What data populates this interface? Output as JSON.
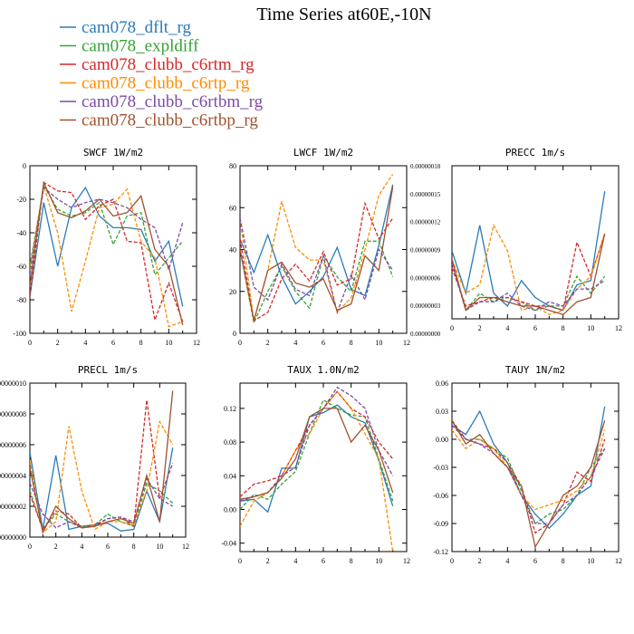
{
  "figure": {
    "title": "Time Series at60E,-10N",
    "legend": [
      {
        "label": "cam078_dflt_rg",
        "color": "#2a7ab8",
        "dashed": false
      },
      {
        "label": "cam078_expldiff",
        "color": "#35a335",
        "dashed": true
      },
      {
        "label": "cam078_clubb_c6rtm_rg",
        "color": "#d62728",
        "dashed": true
      },
      {
        "label": "cam078_clubb_c6rtp_rg",
        "color": "#ff8c00",
        "dashed": true
      },
      {
        "label": "cam078_clubb_c6rtbm_rg",
        "color": "#7b4ba6",
        "dashed": true
      },
      {
        "label": "cam078_clubb_c6rtbp_rg",
        "color": "#a0522d",
        "dashed": false
      }
    ]
  },
  "chart_data": [
    {
      "type": "line",
      "title": "SWCF   1W/m2",
      "x": [
        0,
        1,
        2,
        3,
        4,
        5,
        6,
        7,
        8,
        9,
        10,
        11
      ],
      "xlim": [
        0,
        12
      ],
      "ylim": [
        -100,
        0
      ],
      "xticks": [
        0,
        2,
        4,
        6,
        8,
        10,
        12
      ],
      "yticks": [
        0,
        -20,
        -40,
        -60,
        -80,
        -100
      ],
      "yticklabels": [
        "0",
        "-20",
        "-40",
        "-60",
        "-80",
        "-100"
      ],
      "series": [
        {
          "values": [
            -78,
            -22,
            -60,
            -25,
            -13,
            -30,
            -37,
            -37,
            -38,
            -57,
            -45,
            -84
          ]
        },
        {
          "values": [
            -60,
            -12,
            -26,
            -30,
            -28,
            -22,
            -47,
            -30,
            -28,
            -65,
            -55,
            -45
          ]
        },
        {
          "values": [
            -78,
            -10,
            -15,
            -16,
            -32,
            -24,
            -20,
            -45,
            -46,
            -92,
            -70,
            -93
          ]
        },
        {
          "values": [
            -62,
            -12,
            -40,
            -87,
            -57,
            -25,
            -23,
            -14,
            -45,
            -55,
            -96,
            -93
          ]
        },
        {
          "values": [
            -65,
            -13,
            -20,
            -25,
            -22,
            -20,
            -22,
            -25,
            -32,
            -37,
            -62,
            -34
          ]
        },
        {
          "values": [
            -72,
            -10,
            -28,
            -31,
            -27,
            -20,
            -30,
            -28,
            -18,
            -50,
            -60,
            -95
          ]
        }
      ]
    },
    {
      "type": "line",
      "title": "LWCF   1W/m2",
      "x": [
        0,
        1,
        2,
        3,
        4,
        5,
        6,
        7,
        8,
        9,
        10,
        11
      ],
      "xlim": [
        0,
        12
      ],
      "ylim": [
        0,
        80
      ],
      "xticks": [
        0,
        2,
        4,
        6,
        8,
        10,
        12
      ],
      "yticks": [
        0,
        20,
        40,
        60,
        80
      ],
      "yticklabels": [
        "0",
        "20",
        "40",
        "60",
        "80"
      ],
      "right_axis": {
        "ticks": [
          0.0,
          3e-08,
          6e-08,
          9e-08,
          1.2e-07,
          1.5e-07,
          1.8e-07
        ],
        "ticklabels": [
          "0.00000000",
          "0.00000003",
          "0.00000006",
          "0.00000009",
          "0.00000012",
          "0.00000015",
          "0.00000018"
        ],
        "ylim": [
          0,
          1.8e-07
        ]
      },
      "series": [
        {
          "values": [
            45,
            29,
            47,
            27,
            14,
            20,
            27,
            41,
            21,
            18,
            42,
            71
          ]
        },
        {
          "values": [
            40,
            5,
            20,
            32,
            20,
            12,
            37,
            27,
            20,
            44,
            44,
            27
          ]
        },
        {
          "values": [
            45,
            6,
            10,
            26,
            33,
            25,
            39,
            23,
            26,
            62,
            45,
            55
          ]
        },
        {
          "values": [
            55,
            6,
            30,
            63,
            41,
            35,
            35,
            10,
            17,
            40,
            66,
            76
          ]
        },
        {
          "values": [
            55,
            22,
            16,
            33,
            21,
            18,
            37,
            10,
            28,
            16,
            40,
            30
          ]
        },
        {
          "values": [
            40,
            6,
            30,
            34,
            24,
            22,
            26,
            11,
            14,
            37,
            30,
            70
          ]
        }
      ]
    },
    {
      "type": "line",
      "title": "PRECC   1m/s",
      "x": [
        0,
        1,
        2,
        3,
        4,
        5,
        6,
        7,
        8,
        9,
        10,
        11
      ],
      "xlim": [
        0,
        12
      ],
      "ylim": [
        0,
        1.8e-07
      ],
      "xticks": [
        0,
        2,
        4,
        6,
        8,
        10,
        12
      ],
      "yticks": [],
      "yticklabels": [],
      "series": [
        {
          "values": [
            8e-08,
            3e-08,
            1.1e-07,
            3e-08,
            1.5e-08,
            4.5e-08,
            2.5e-08,
            1.5e-08,
            1e-08,
            4e-08,
            4.5e-08,
            1.5e-07
          ]
        },
        {
          "values": [
            7e-08,
            1e-08,
            3e-08,
            2e-08,
            2.5e-08,
            2e-08,
            1e-08,
            1.5e-08,
            1.5e-08,
            5e-08,
            3e-08,
            5e-08
          ]
        },
        {
          "values": [
            6e-08,
            1.5e-08,
            2e-08,
            2.5e-08,
            2.5e-08,
            2e-08,
            1.5e-08,
            1.5e-08,
            1e-08,
            9e-08,
            5e-08,
            1e-07
          ]
        },
        {
          "values": [
            7e-08,
            3e-08,
            4e-08,
            1.1e-07,
            8e-08,
            1e-08,
            1.5e-08,
            5e-09,
            1e-08,
            3.5e-08,
            5e-08,
            1e-07
          ]
        },
        {
          "values": [
            6.5e-08,
            1e-08,
            2e-08,
            2e-08,
            3e-08,
            1.5e-08,
            1e-08,
            2e-08,
            1.5e-08,
            3.5e-08,
            3.5e-08,
            4.5e-08
          ]
        },
        {
          "values": [
            7e-08,
            1e-08,
            2.5e-08,
            2.5e-08,
            2e-08,
            1.5e-08,
            1.5e-08,
            1e-08,
            5e-09,
            2e-08,
            2.5e-08,
            1e-07
          ]
        }
      ]
    },
    {
      "type": "line",
      "title": "PRECL   1m/s",
      "x": [
        0,
        1,
        2,
        3,
        4,
        5,
        6,
        7,
        8,
        9,
        10,
        11
      ],
      "xlim": [
        0,
        12
      ],
      "ylim": [
        0,
        1e-07
      ],
      "xticks": [
        0,
        2,
        4,
        6,
        8,
        10,
        12
      ],
      "yticks": [
        1e-07,
        8e-08,
        6e-08,
        4e-08,
        2e-08,
        0
      ],
      "yticklabels": [
        "00000010",
        "00000008",
        "00000006",
        "00000004",
        "00000002",
        "00000000"
      ],
      "series": [
        {
          "values": [
            5.5e-08,
            5e-09,
            5.3e-08,
            5e-09,
            7e-09,
            8e-09,
            9e-09,
            4e-09,
            5e-09,
            3e-08,
            1e-08,
            5.8e-08
          ]
        },
        {
          "values": [
            3e-08,
            5e-09,
            1.5e-08,
            1e-08,
            7e-09,
            8e-09,
            1.5e-08,
            1e-08,
            7e-09,
            3.5e-08,
            3e-08,
            2.2e-08
          ]
        },
        {
          "values": [
            2.8e-08,
            5e-09,
            1.7e-08,
            1.5e-08,
            6e-09,
            8e-09,
            1.2e-08,
            1.3e-08,
            7e-09,
            8.9e-08,
            2.5e-08,
            4.8e-08
          ]
        },
        {
          "values": [
            5e-08,
            3e-09,
            1e-08,
            7.2e-08,
            3e-08,
            5e-09,
            1e-08,
            1e-08,
            8e-09,
            3e-08,
            7.5e-08,
            6e-08
          ]
        },
        {
          "values": [
            3.5e-08,
            1.5e-08,
            6e-09,
            1e-08,
            6e-09,
            7e-09,
            1.2e-08,
            1.3e-08,
            1e-08,
            3.8e-08,
            2.5e-08,
            2e-08
          ]
        },
        {
          "values": [
            4.5e-08,
            3e-09,
            2e-08,
            1.2e-08,
            6e-09,
            7e-09,
            1e-08,
            1.2e-08,
            9e-09,
            4e-08,
            1e-08,
            9.5e-08
          ]
        }
      ]
    },
    {
      "type": "line",
      "title": "TAUX   1.0N/m2",
      "x": [
        0,
        1,
        2,
        3,
        4,
        5,
        6,
        7,
        8,
        9,
        10,
        11
      ],
      "xlim": [
        0,
        12
      ],
      "ylim": [
        -0.05,
        0.15
      ],
      "xticks": [
        0,
        2,
        4,
        6,
        8,
        10,
        12
      ],
      "yticks": [
        0.12,
        0.08,
        0.04,
        0.0,
        -0.04
      ],
      "yticklabels": [
        "0.12",
        "0.08",
        "0.04",
        "0.00",
        "-0.04"
      ],
      "series": [
        {
          "values": [
            0.01,
            0.012,
            -0.003,
            0.049,
            0.049,
            0.11,
            0.115,
            0.124,
            0.11,
            0.103,
            0.058,
            0.004
          ]
        },
        {
          "values": [
            0.0,
            0.018,
            0.012,
            0.03,
            0.045,
            0.09,
            0.13,
            0.12,
            0.112,
            0.11,
            0.06,
            0.01
          ]
        },
        {
          "values": [
            0.015,
            0.03,
            0.034,
            0.04,
            0.07,
            0.1,
            0.12,
            0.14,
            0.12,
            0.11,
            0.08,
            0.06
          ]
        },
        {
          "values": [
            -0.02,
            0.01,
            0.02,
            0.04,
            0.07,
            0.09,
            0.12,
            0.14,
            0.12,
            0.09,
            0.06,
            -0.05
          ]
        },
        {
          "values": [
            0.01,
            0.015,
            0.02,
            0.04,
            0.05,
            0.1,
            0.12,
            0.145,
            0.135,
            0.12,
            0.07,
            0.04
          ]
        },
        {
          "values": [
            0.012,
            0.015,
            0.02,
            0.037,
            0.06,
            0.11,
            0.12,
            0.12,
            0.08,
            0.1,
            0.07,
            0.02
          ]
        }
      ]
    },
    {
      "type": "line",
      "title": "TAUY   1N/m2",
      "x": [
        0,
        1,
        2,
        3,
        4,
        5,
        6,
        7,
        8,
        9,
        10,
        11
      ],
      "xlim": [
        0,
        12
      ],
      "ylim": [
        -0.12,
        0.06
      ],
      "xticks": [
        0,
        2,
        4,
        6,
        8,
        10,
        12
      ],
      "yticks": [
        0.06,
        0.03,
        0.0,
        -0.03,
        -0.06,
        -0.09,
        -0.12
      ],
      "yticklabels": [
        "0.06",
        "0.03",
        "0.00",
        "-0.03",
        "-0.06",
        "-0.09",
        "-0.12"
      ],
      "series": [
        {
          "values": [
            0.015,
            0.005,
            0.03,
            -0.005,
            -0.025,
            -0.06,
            -0.08,
            -0.095,
            -0.08,
            -0.06,
            -0.05,
            0.035
          ]
        },
        {
          "values": [
            0.02,
            0.0,
            0.0,
            -0.01,
            -0.02,
            -0.055,
            -0.09,
            -0.08,
            -0.075,
            -0.06,
            -0.03,
            -0.01
          ]
        },
        {
          "values": [
            0.02,
            0.0,
            -0.005,
            -0.01,
            -0.025,
            -0.05,
            -0.1,
            -0.09,
            -0.07,
            -0.035,
            -0.045,
            0.0
          ]
        },
        {
          "values": [
            0.01,
            -0.01,
            0.0,
            -0.01,
            -0.03,
            -0.06,
            -0.075,
            -0.07,
            -0.065,
            -0.055,
            -0.04,
            0.01
          ]
        },
        {
          "values": [
            0.015,
            0.0,
            -0.005,
            -0.015,
            -0.03,
            -0.06,
            -0.09,
            -0.09,
            -0.07,
            -0.06,
            -0.04,
            -0.01
          ]
        },
        {
          "values": [
            0.02,
            -0.005,
            0.005,
            -0.015,
            -0.03,
            -0.05,
            -0.115,
            -0.09,
            -0.06,
            -0.05,
            -0.03,
            0.02
          ]
        }
      ]
    }
  ]
}
